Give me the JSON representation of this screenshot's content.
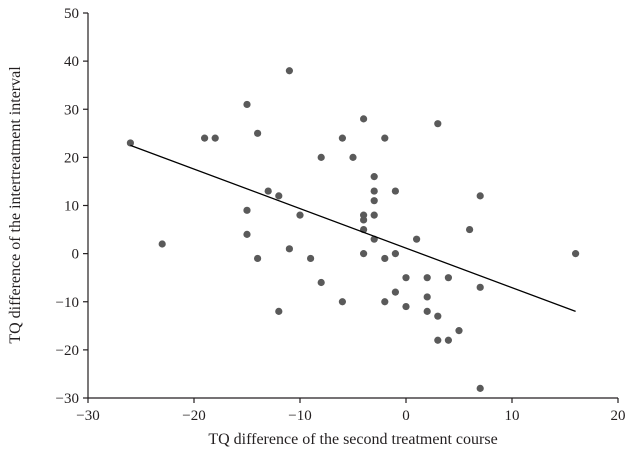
{
  "chart_data": {
    "type": "scatter",
    "title": "",
    "xlabel": "TQ difference of the second treatment course",
    "ylabel": "TQ difference of the intertreatment interval",
    "xlim": [
      -30,
      20
    ],
    "ylim": [
      -30,
      50
    ],
    "xticks": [
      -30,
      -20,
      -10,
      0,
      10,
      20
    ],
    "yticks": [
      -30,
      -20,
      -10,
      0,
      10,
      20,
      30,
      40,
      50
    ],
    "xtick_labels": [
      "−30",
      "−20",
      "−10",
      "0",
      "10",
      "20"
    ],
    "ytick_labels": [
      "−30",
      "−20",
      "−10",
      "0",
      "10",
      "20",
      "30",
      "40",
      "50"
    ],
    "grid": false,
    "legend": "none",
    "point_color": "#5a5a5a",
    "trendline": {
      "x": [
        -26,
        16
      ],
      "y": [
        22.5,
        -12
      ]
    },
    "points": [
      [
        -26,
        23
      ],
      [
        -23,
        2
      ],
      [
        -19,
        24
      ],
      [
        -18,
        24
      ],
      [
        -15,
        31
      ],
      [
        -15,
        9
      ],
      [
        -15,
        4
      ],
      [
        -14,
        25
      ],
      [
        -14,
        -1
      ],
      [
        -13,
        13
      ],
      [
        -12,
        12
      ],
      [
        -12,
        -12
      ],
      [
        -11,
        38
      ],
      [
        -11,
        1
      ],
      [
        -10,
        8
      ],
      [
        -9,
        -1
      ],
      [
        -8,
        20
      ],
      [
        -8,
        -6
      ],
      [
        -6,
        24
      ],
      [
        -6,
        -10
      ],
      [
        -5,
        20
      ],
      [
        -4,
        28
      ],
      [
        -4,
        8
      ],
      [
        -4,
        7
      ],
      [
        -4,
        5
      ],
      [
        -4,
        0
      ],
      [
        -3,
        16
      ],
      [
        -3,
        13
      ],
      [
        -3,
        11
      ],
      [
        -3,
        8
      ],
      [
        -3,
        3
      ],
      [
        -2,
        24
      ],
      [
        -2,
        -1
      ],
      [
        -2,
        -10
      ],
      [
        -1,
        13
      ],
      [
        -1,
        0
      ],
      [
        -1,
        -8
      ],
      [
        0,
        -5
      ],
      [
        0,
        -11
      ],
      [
        1,
        3
      ],
      [
        2,
        -5
      ],
      [
        2,
        -9
      ],
      [
        2,
        -12
      ],
      [
        3,
        27
      ],
      [
        3,
        -13
      ],
      [
        3,
        -18
      ],
      [
        4,
        -5
      ],
      [
        4,
        -18
      ],
      [
        5,
        -16
      ],
      [
        6,
        5
      ],
      [
        7,
        12
      ],
      [
        7,
        -7
      ],
      [
        7,
        -28
      ],
      [
        16,
        0
      ]
    ]
  }
}
